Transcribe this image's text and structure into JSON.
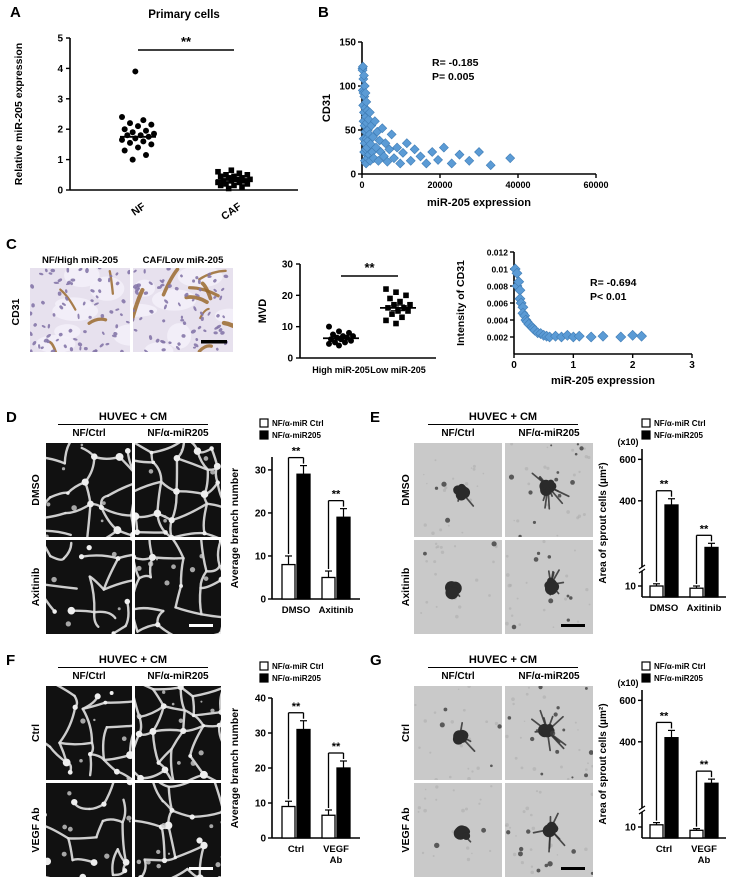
{
  "panels": {
    "A": {
      "label": "A"
    },
    "B": {
      "label": "B"
    },
    "C": {
      "label": "C",
      "row_label": "CD31",
      "image_titles": [
        "NF/High  miR-205",
        "CAF/Low  miR-205"
      ]
    },
    "D": {
      "label": "D",
      "header": "HUVEC + CM",
      "col_labels": [
        "NF/Ctrl",
        "NF/α-miR205"
      ],
      "row_labels": [
        "DMSO",
        "Axitinib"
      ]
    },
    "E": {
      "label": "E",
      "header": "HUVEC + CM",
      "col_labels": [
        "NF/Ctrl",
        "NF/α-miR205"
      ],
      "row_labels": [
        "DMSO",
        "Axitinib"
      ]
    },
    "F": {
      "label": "F",
      "header": "HUVEC + CM",
      "col_labels": [
        "NF/Ctrl",
        "NF/α-miR205"
      ],
      "row_labels": [
        "Ctrl",
        "VEGF Ab"
      ]
    },
    "G": {
      "label": "G",
      "header": "HUVEC + CM",
      "col_labels": [
        "NF/Ctrl",
        "NF/α-miR205"
      ],
      "row_labels": [
        "Ctrl",
        "VEGF Ab"
      ]
    }
  },
  "colors": {
    "scatter_diamond": "#5b9bd5",
    "diamond_stroke": "#3f7cb5",
    "bar_ctrl_fill": "#ffffff",
    "bar_mir_fill": "#000000",
    "axis": "#000000"
  },
  "chart_data": [
    {
      "id": "A",
      "type": "scatter",
      "subtype": "column-dotplot",
      "title": "Primary cells",
      "ylabel": "Relative miR-205 expression",
      "categories": [
        "NF",
        "CAF"
      ],
      "markers": [
        "circle",
        "square"
      ],
      "series": [
        {
          "name": "NF",
          "mean": 1.75,
          "values": [
            3.9,
            2.4,
            2.3,
            2.2,
            2.15,
            2.1,
            2.0,
            1.95,
            1.9,
            1.85,
            1.8,
            1.8,
            1.75,
            1.7,
            1.65,
            1.6,
            1.55,
            1.5,
            1.4,
            1.3,
            1.15,
            1.0
          ]
        },
        {
          "name": "CAF",
          "mean": 0.33,
          "values": [
            0.65,
            0.6,
            0.55,
            0.5,
            0.5,
            0.45,
            0.45,
            0.4,
            0.4,
            0.35,
            0.35,
            0.3,
            0.3,
            0.3,
            0.25,
            0.25,
            0.2,
            0.2,
            0.15,
            0.15,
            0.1,
            0.05
          ]
        }
      ],
      "ylim": [
        0,
        5
      ],
      "yticks": [
        0,
        1,
        2,
        3,
        4,
        5
      ],
      "significance": "**",
      "rotate_xlabels": true
    },
    {
      "id": "B",
      "type": "scatter",
      "ylabel": "CD31",
      "xlabel": "miR-205 expression",
      "xlim": [
        0,
        60000
      ],
      "ylim": [
        0,
        150
      ],
      "xticks": [
        0,
        20000,
        40000,
        60000
      ],
      "yticks": [
        0,
        50,
        100,
        150
      ],
      "annotations": [
        "R= -0.185",
        "P=  0.005"
      ],
      "points": [
        [
          120,
          120
        ],
        [
          150,
          118
        ],
        [
          200,
          95
        ],
        [
          250,
          122
        ],
        [
          300,
          78
        ],
        [
          350,
          108
        ],
        [
          400,
          60
        ],
        [
          400,
          92
        ],
        [
          450,
          40
        ],
        [
          500,
          112
        ],
        [
          500,
          70
        ],
        [
          550,
          25
        ],
        [
          600,
          88
        ],
        [
          650,
          55
        ],
        [
          700,
          100
        ],
        [
          700,
          35
        ],
        [
          750,
          15
        ],
        [
          800,
          75
        ],
        [
          850,
          48
        ],
        [
          900,
          92
        ],
        [
          950,
          28
        ],
        [
          1000,
          65
        ],
        [
          1050,
          12
        ],
        [
          1100,
          82
        ],
        [
          1150,
          40
        ],
        [
          1200,
          58
        ],
        [
          1300,
          30
        ],
        [
          1350,
          72
        ],
        [
          1400,
          18
        ],
        [
          1500,
          50
        ],
        [
          1600,
          38
        ],
        [
          1700,
          62
        ],
        [
          1800,
          22
        ],
        [
          1900,
          45
        ],
        [
          2000,
          70
        ],
        [
          2100,
          15
        ],
        [
          2200,
          34
        ],
        [
          2400,
          55
        ],
        [
          2600,
          25
        ],
        [
          2800,
          42
        ],
        [
          3000,
          18
        ],
        [
          3300,
          60
        ],
        [
          3600,
          30
        ],
        [
          3900,
          48
        ],
        [
          4200,
          15
        ],
        [
          4500,
          38
        ],
        [
          4800,
          25
        ],
        [
          5200,
          52
        ],
        [
          5600,
          20
        ],
        [
          6000,
          35
        ],
        [
          6500,
          14
        ],
        [
          7000,
          28
        ],
        [
          7600,
          45
        ],
        [
          8200,
          18
        ],
        [
          9000,
          30
        ],
        [
          9800,
          12
        ],
        [
          10500,
          24
        ],
        [
          11500,
          35
        ],
        [
          12500,
          15
        ],
        [
          13500,
          28
        ],
        [
          15000,
          20
        ],
        [
          16500,
          12
        ],
        [
          18000,
          25
        ],
        [
          19500,
          16
        ],
        [
          21000,
          30
        ],
        [
          23000,
          12
        ],
        [
          25000,
          22
        ],
        [
          27500,
          15
        ],
        [
          30000,
          25
        ],
        [
          33000,
          10
        ],
        [
          38000,
          18
        ]
      ]
    },
    {
      "id": "C_mvd",
      "type": "scatter",
      "subtype": "column-dotplot",
      "ylabel": "MVD",
      "categories": [
        "High miR-205",
        "Low miR-205"
      ],
      "markers": [
        "circle",
        "square"
      ],
      "series": [
        {
          "name": "High miR-205",
          "mean": 6.3,
          "sem": 0.6,
          "values": [
            4,
            4.5,
            5,
            5,
            5.5,
            6,
            6,
            6.5,
            6.5,
            7,
            7,
            7.5,
            8,
            8.5,
            10
          ]
        },
        {
          "name": "Low miR-205",
          "mean": 16,
          "sem": 0.9,
          "values": [
            11,
            12,
            13,
            14,
            15,
            15,
            16,
            16,
            17,
            17,
            18,
            19,
            20,
            21,
            22
          ]
        }
      ],
      "ylim": [
        0,
        30
      ],
      "yticks": [
        0,
        10,
        20,
        30
      ],
      "significance": "**",
      "rotate_xlabels": false
    },
    {
      "id": "C_int",
      "type": "scatter",
      "ylabel": "Intensity of CD31",
      "xlabel": "miR-205 expression",
      "xlim": [
        0,
        3
      ],
      "ylim": [
        0,
        0.012
      ],
      "xticks": [
        0,
        1,
        2,
        3
      ],
      "yticks": [
        0.002,
        0.004,
        0.006,
        0.008,
        0.01,
        0.012
      ],
      "ytick_labels": [
        "0.002",
        "0.004",
        "0.006",
        "0.008",
        "0.01",
        "0.012"
      ],
      "annotations": [
        "R= -0.694",
        "P< 0.01"
      ],
      "points": [
        [
          0.02,
          0.01
        ],
        [
          0.05,
          0.0095
        ],
        [
          0.05,
          0.008
        ],
        [
          0.08,
          0.0085
        ],
        [
          0.1,
          0.0075
        ],
        [
          0.1,
          0.0065
        ],
        [
          0.12,
          0.006
        ],
        [
          0.15,
          0.0055
        ],
        [
          0.15,
          0.0048
        ],
        [
          0.18,
          0.0045
        ],
        [
          0.2,
          0.004
        ],
        [
          0.22,
          0.0038
        ],
        [
          0.25,
          0.0035
        ],
        [
          0.3,
          0.0032
        ],
        [
          0.32,
          0.003
        ],
        [
          0.35,
          0.0028
        ],
        [
          0.4,
          0.0025
        ],
        [
          0.45,
          0.0024
        ],
        [
          0.5,
          0.0022
        ],
        [
          0.55,
          0.0021
        ],
        [
          0.6,
          0.002
        ],
        [
          0.7,
          0.0021
        ],
        [
          0.8,
          0.002
        ],
        [
          0.9,
          0.0022
        ],
        [
          1.0,
          0.002
        ],
        [
          1.1,
          0.0021
        ],
        [
          1.3,
          0.002
        ],
        [
          1.5,
          0.0021
        ],
        [
          1.8,
          0.002
        ],
        [
          2.0,
          0.0022
        ],
        [
          2.15,
          0.0021
        ]
      ]
    },
    {
      "id": "D_bar",
      "type": "bar",
      "ylabel": "Average branch number",
      "categories": [
        "DMSO",
        "Axitinib"
      ],
      "series": [
        {
          "name": "NF/α-miR Ctrl",
          "fill": "#ffffff",
          "values": [
            8,
            5
          ],
          "errors": [
            2,
            1.5
          ]
        },
        {
          "name": "NF/α-miR205",
          "fill": "#000000",
          "values": [
            29,
            19
          ],
          "errors": [
            2,
            2
          ]
        }
      ],
      "ylim": [
        0,
        33
      ],
      "yticks": [
        0,
        10,
        20,
        30
      ],
      "significance": [
        "**",
        "**"
      ]
    },
    {
      "id": "E_bar",
      "type": "bar-broken-axis",
      "ylabel": "Area of sprout cells (μm²)",
      "unit_note": "(x10)",
      "categories": [
        "DMSO",
        "Axitinib"
      ],
      "series": [
        {
          "name": "NF/α-miR Ctrl",
          "fill": "#ffffff",
          "values": [
            10,
            8
          ],
          "errors": [
            2,
            2
          ]
        },
        {
          "name": "NF/α-miR205",
          "fill": "#000000",
          "values": [
            380,
            175
          ],
          "errors": [
            30,
            20
          ]
        }
      ],
      "break": {
        "low": 20,
        "high": 100
      },
      "ymax": 650,
      "yticks_bottom": [
        10
      ],
      "yticks_top": [
        400,
        600
      ],
      "significance": [
        "**",
        "**"
      ]
    },
    {
      "id": "F_bar",
      "type": "bar",
      "ylabel": "Average branch number",
      "categories": [
        "Ctrl",
        "VEGF Ab"
      ],
      "series": [
        {
          "name": "NF/α-miR Ctrl",
          "fill": "#ffffff",
          "values": [
            9,
            6.5
          ],
          "errors": [
            1.5,
            1.5
          ]
        },
        {
          "name": "NF/α-miR205",
          "fill": "#000000",
          "values": [
            31,
            20
          ],
          "errors": [
            2.5,
            2
          ]
        }
      ],
      "ylim": [
        0,
        40
      ],
      "yticks": [
        0,
        10,
        20,
        30,
        40
      ],
      "significance": [
        "**",
        "**"
      ]
    },
    {
      "id": "G_bar",
      "type": "bar-broken-axis",
      "ylabel": "Area of sprout cells (μm²)",
      "unit_note": "(x10)",
      "categories": [
        "Ctrl",
        "VEGF Ab"
      ],
      "series": [
        {
          "name": "NF/α-miR Ctrl",
          "fill": "#ffffff",
          "values": [
            12,
            7
          ],
          "errors": [
            2,
            1.5
          ]
        },
        {
          "name": "NF/α-miR205",
          "fill": "#000000",
          "values": [
            420,
            200
          ],
          "errors": [
            35,
            20
          ]
        }
      ],
      "break": {
        "low": 20,
        "high": 100
      },
      "ymax": 650,
      "yticks_bottom": [
        10
      ],
      "yticks_top": [
        400,
        600
      ],
      "significance": [
        "**",
        "**"
      ]
    }
  ]
}
